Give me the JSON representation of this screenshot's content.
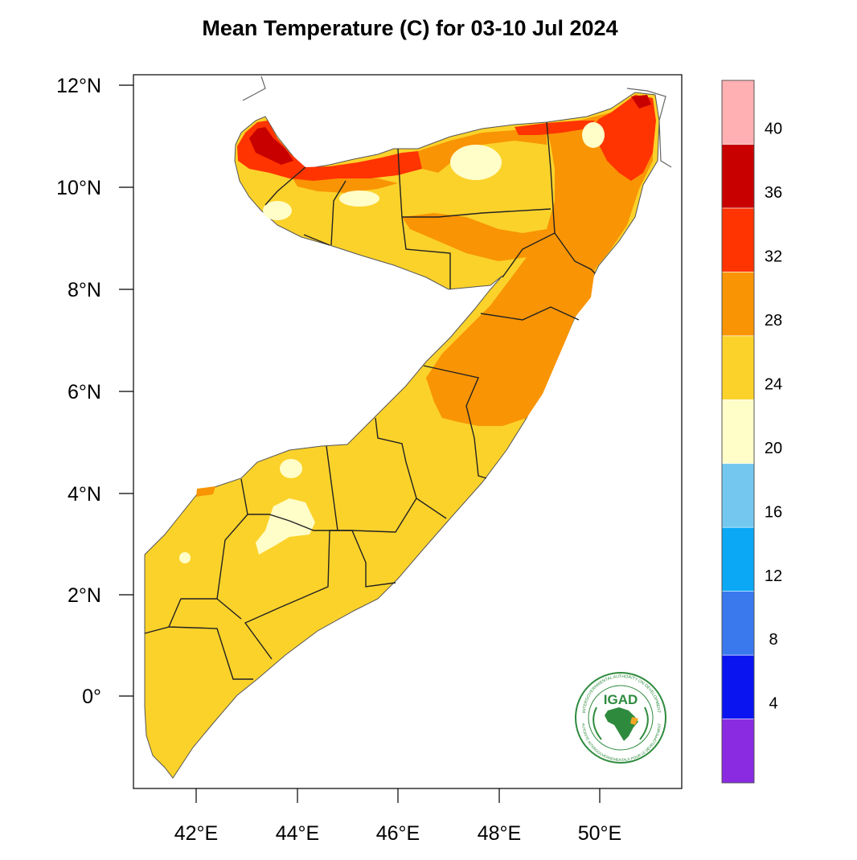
{
  "title": "Mean Temperature (C) for 03-10 Jul 2024",
  "chart_data": {
    "type": "heatmap",
    "title": "Mean Temperature (C) for 03-10 Jul 2024",
    "variable": "Mean Temperature",
    "unit": "C",
    "period": "03-10 Jul 2024",
    "region": "Somalia",
    "x_axis": {
      "range": [
        40.7,
        51.5
      ],
      "ticks": [
        42,
        44,
        46,
        48,
        50
      ],
      "tick_labels": [
        "42°E",
        "44°E",
        "46°E",
        "48°E",
        "50°E"
      ]
    },
    "y_axis": {
      "range": [
        -1.8,
        12.2
      ],
      "ticks": [
        0,
        2,
        4,
        6,
        8,
        10,
        12
      ],
      "tick_labels": [
        "0°",
        "2°N",
        "4°N",
        "6°N",
        "8°N",
        "10°N",
        "12°N"
      ]
    },
    "colorbar": {
      "bins": [
        {
          "min": null,
          "max": 4,
          "color": "#8a2be2"
        },
        {
          "min": 4,
          "max": 8,
          "color": "#0a14f0"
        },
        {
          "min": 8,
          "max": 12,
          "color": "#3a78ee"
        },
        {
          "min": 12,
          "max": 16,
          "color": "#0aa8f5"
        },
        {
          "min": 16,
          "max": 20,
          "color": "#74c8f0"
        },
        {
          "min": 20,
          "max": 24,
          "color": "#fffdc8"
        },
        {
          "min": 24,
          "max": 28,
          "color": "#fbd22a"
        },
        {
          "min": 28,
          "max": 32,
          "color": "#f99404"
        },
        {
          "min": 32,
          "max": 36,
          "color": "#ff3400"
        },
        {
          "min": 36,
          "max": 40,
          "color": "#c80000"
        },
        {
          "min": 40,
          "max": null,
          "color": "#ffb0b3"
        }
      ],
      "labels": [
        "4",
        "8",
        "12",
        "16",
        "20",
        "24",
        "28",
        "32",
        "36",
        "40"
      ]
    },
    "dominant_range_south": "24-28",
    "warmest_areas": "northern coast 32-40"
  },
  "logo": {
    "text": "IGAD",
    "ring_text_top": "INTERGOVERNMENTAL AUTHORITY ON DEVELOPMENT",
    "ring_text_bottom": "AUTORITÉ INTERGOUVERNEMENTALE POUR LE DÉVELOPPEMENT"
  }
}
